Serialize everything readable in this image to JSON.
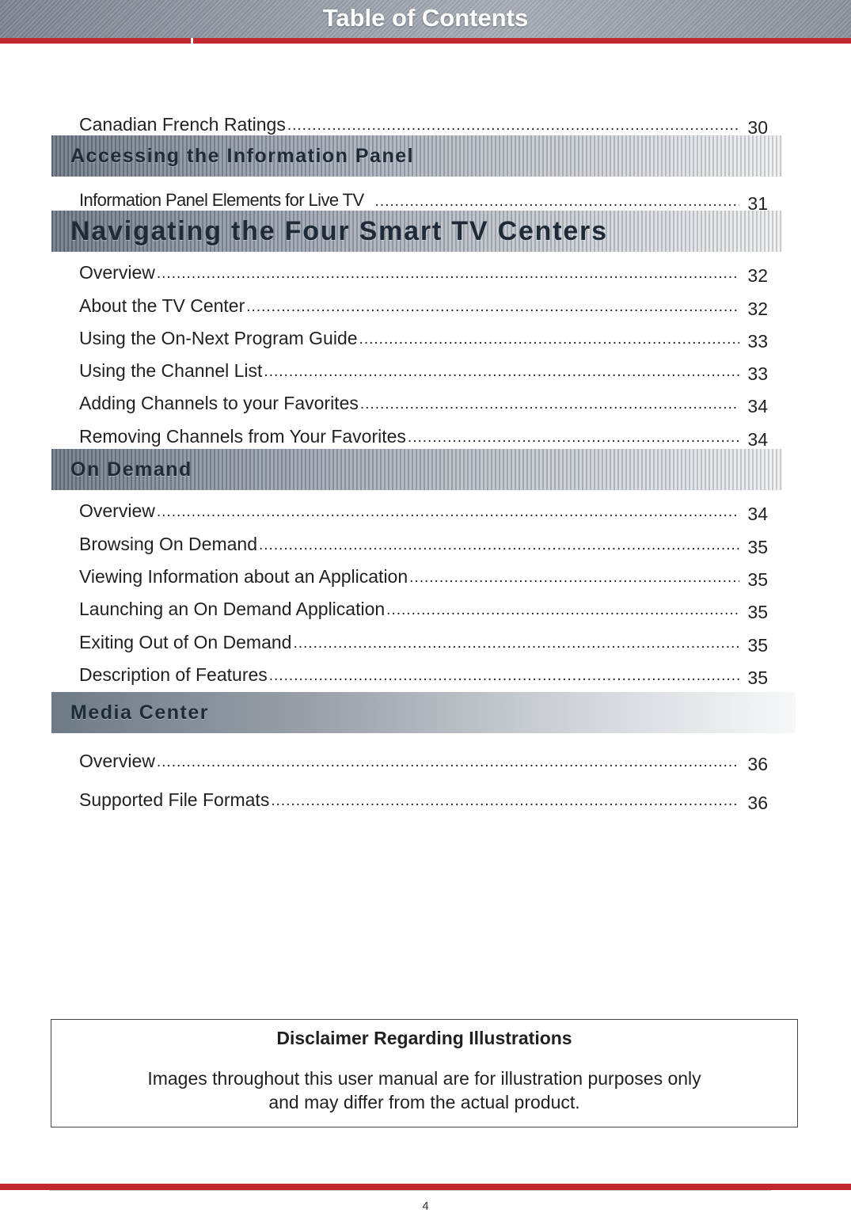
{
  "header": {
    "title": "Table of Contents"
  },
  "entries_top": [
    {
      "label": "Canadian French Ratings",
      "page": "30"
    }
  ],
  "sections": [
    {
      "title": "Accessing the Information Panel",
      "entries": [
        {
          "label": "Information Panel Elements for Live TV",
          "page": "31"
        }
      ]
    },
    {
      "title": "Navigating the Four Smart TV Centers",
      "entries": [
        {
          "label": "Overview",
          "page": "32"
        },
        {
          "label": "About the TV Center",
          "page": "32"
        },
        {
          "label": "Using the On-Next Program Guide",
          "page": "33"
        },
        {
          "label": "Using the Channel List",
          "page": "33"
        },
        {
          "label": "Adding Channels to your Favorites",
          "page": "34"
        },
        {
          "label": "Removing Channels from Your Favorites",
          "page": "34"
        }
      ]
    },
    {
      "title": "On Demand",
      "entries": [
        {
          "label": "Overview",
          "page": "34"
        },
        {
          "label": "Browsing On Demand",
          "page": "35"
        },
        {
          "label": "Viewing Information about an Application",
          "page": "35"
        },
        {
          "label": "Launching an On Demand Application",
          "page": "35"
        },
        {
          "label": "Exiting Out of On Demand",
          "page": "35"
        },
        {
          "label": "Description of Features",
          "page": "35"
        }
      ]
    },
    {
      "title": "Media Center",
      "entries": [
        {
          "label": "Overview",
          "page": "36"
        },
        {
          "label": "Supported File Formats",
          "page": "36"
        }
      ]
    }
  ],
  "disclaimer": {
    "title": "Disclaimer Regarding Illustrations",
    "line1": "Images throughout this user manual are for illustration purposes only",
    "line2": "and may differ from the actual product."
  },
  "footer": {
    "page_number": "4"
  }
}
